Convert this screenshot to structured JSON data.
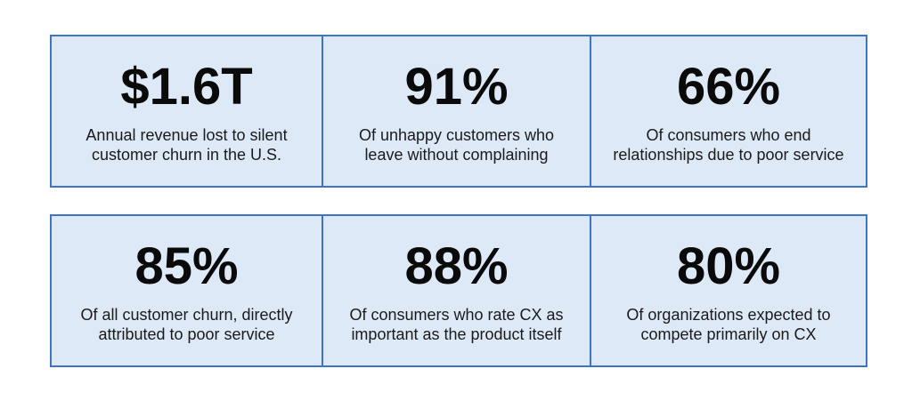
{
  "stats": [
    {
      "value": "$1.6T",
      "description": "Annual revenue lost to silent\ncustomer churn in the U.S."
    },
    {
      "value": "91%",
      "description": "Of unhappy customers who\nleave without complaining"
    },
    {
      "value": "66%",
      "description": "Of consumers who end\nrelationships due to poor service"
    },
    {
      "value": "85%",
      "description": "Of all customer churn, directly\nattributed to poor service"
    },
    {
      "value": "88%",
      "description": "Of consumers who rate CX as\nimportant as the product itself"
    },
    {
      "value": "80%",
      "description": "Of organizations expected to\ncompete primarily on CX"
    }
  ]
}
